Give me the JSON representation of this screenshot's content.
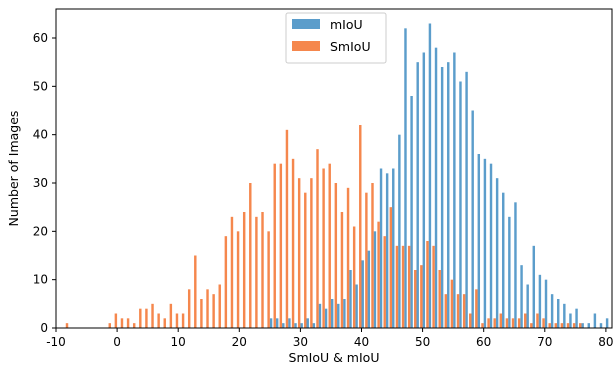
{
  "chart_data": {
    "type": "bar",
    "xlabel": "SmIoU & mIoU",
    "ylabel": "Number of Images",
    "xlim": [
      -10,
      81
    ],
    "ylim": [
      0,
      66
    ],
    "x_ticks": [
      -10,
      0,
      10,
      20,
      30,
      40,
      50,
      60,
      70,
      80
    ],
    "y_ticks": [
      0,
      10,
      20,
      30,
      40,
      50,
      60
    ],
    "grid": false,
    "legend_position": "top-center",
    "series": [
      {
        "name": "mIoU",
        "color": "#5b9dcb",
        "points": [
          [
            25,
            2
          ],
          [
            26,
            2
          ],
          [
            27,
            1
          ],
          [
            28,
            2
          ],
          [
            29,
            1
          ],
          [
            30,
            1
          ],
          [
            31,
            2
          ],
          [
            32,
            1
          ],
          [
            33,
            5
          ],
          [
            34,
            4
          ],
          [
            35,
            6
          ],
          [
            36,
            5
          ],
          [
            37,
            6
          ],
          [
            38,
            12
          ],
          [
            39,
            9
          ],
          [
            40,
            14
          ],
          [
            41,
            16
          ],
          [
            42,
            20
          ],
          [
            43,
            33
          ],
          [
            44,
            32
          ],
          [
            45,
            33
          ],
          [
            46,
            40
          ],
          [
            47,
            62
          ],
          [
            48,
            48
          ],
          [
            49,
            55
          ],
          [
            50,
            57
          ],
          [
            51,
            63
          ],
          [
            52,
            58
          ],
          [
            53,
            54
          ],
          [
            54,
            55
          ],
          [
            55,
            57
          ],
          [
            56,
            51
          ],
          [
            57,
            53
          ],
          [
            58,
            45
          ],
          [
            59,
            36
          ],
          [
            60,
            35
          ],
          [
            61,
            34
          ],
          [
            62,
            31
          ],
          [
            63,
            28
          ],
          [
            64,
            23
          ],
          [
            65,
            26
          ],
          [
            66,
            13
          ],
          [
            67,
            9
          ],
          [
            68,
            17
          ],
          [
            69,
            11
          ],
          [
            70,
            10
          ],
          [
            71,
            7
          ],
          [
            72,
            6
          ],
          [
            73,
            5
          ],
          [
            74,
            3
          ],
          [
            75,
            4
          ],
          [
            76,
            1
          ],
          [
            77,
            1
          ],
          [
            78,
            3
          ],
          [
            79,
            1
          ],
          [
            80,
            2
          ]
        ]
      },
      {
        "name": "SmIoU",
        "color": "#f5874d",
        "points": [
          [
            -8,
            1
          ],
          [
            -1,
            1
          ],
          [
            0,
            3
          ],
          [
            1,
            2
          ],
          [
            2,
            2
          ],
          [
            3,
            1
          ],
          [
            4,
            4
          ],
          [
            5,
            4
          ],
          [
            6,
            5
          ],
          [
            7,
            3
          ],
          [
            8,
            2
          ],
          [
            9,
            5
          ],
          [
            10,
            3
          ],
          [
            11,
            3
          ],
          [
            12,
            8
          ],
          [
            13,
            15
          ],
          [
            14,
            6
          ],
          [
            15,
            8
          ],
          [
            16,
            7
          ],
          [
            17,
            9
          ],
          [
            18,
            19
          ],
          [
            19,
            23
          ],
          [
            20,
            20
          ],
          [
            21,
            24
          ],
          [
            22,
            30
          ],
          [
            23,
            23
          ],
          [
            24,
            24
          ],
          [
            25,
            20
          ],
          [
            26,
            34
          ],
          [
            27,
            34
          ],
          [
            28,
            41
          ],
          [
            29,
            35
          ],
          [
            30,
            31
          ],
          [
            31,
            28
          ],
          [
            32,
            31
          ],
          [
            33,
            37
          ],
          [
            34,
            33
          ],
          [
            35,
            34
          ],
          [
            36,
            30
          ],
          [
            37,
            24
          ],
          [
            38,
            29
          ],
          [
            39,
            21
          ],
          [
            40,
            42
          ],
          [
            41,
            28
          ],
          [
            42,
            30
          ],
          [
            43,
            22
          ],
          [
            44,
            19
          ],
          [
            45,
            25
          ],
          [
            46,
            17
          ],
          [
            47,
            17
          ],
          [
            48,
            17
          ],
          [
            49,
            12
          ],
          [
            50,
            13
          ],
          [
            51,
            18
          ],
          [
            52,
            17
          ],
          [
            53,
            12
          ],
          [
            54,
            7
          ],
          [
            55,
            10
          ],
          [
            56,
            7
          ],
          [
            57,
            7
          ],
          [
            58,
            3
          ],
          [
            59,
            8
          ],
          [
            60,
            1
          ],
          [
            61,
            2
          ],
          [
            62,
            2
          ],
          [
            63,
            3
          ],
          [
            64,
            2
          ],
          [
            65,
            2
          ],
          [
            66,
            2
          ],
          [
            67,
            3
          ],
          [
            68,
            1
          ],
          [
            69,
            3
          ],
          [
            70,
            2
          ],
          [
            71,
            1
          ],
          [
            72,
            1
          ],
          [
            73,
            1
          ],
          [
            74,
            1
          ],
          [
            75,
            1
          ],
          [
            76,
            1
          ]
        ]
      }
    ]
  }
}
